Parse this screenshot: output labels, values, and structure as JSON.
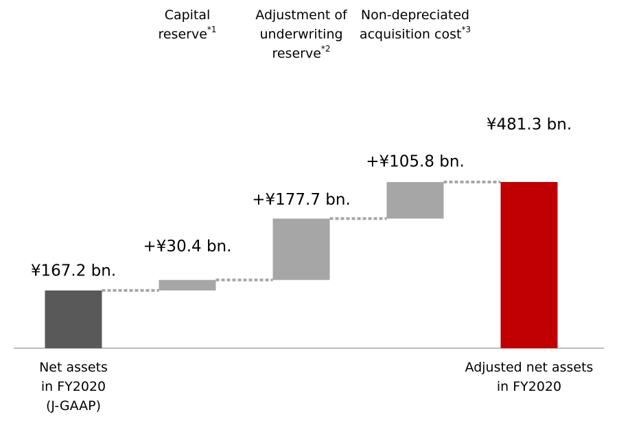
{
  "chart_data": {
    "type": "waterfall",
    "categories": [
      [
        "Net assets",
        "in FY2020",
        "(J-GAAP)"
      ],
      [
        "Capital",
        "reserve"
      ],
      [
        "Adjustment of",
        "underwriting",
        "reserve"
      ],
      [
        "Non-depreciated",
        "acquisition cost"
      ],
      [
        "Adjusted net assets",
        "in FY2020"
      ]
    ],
    "notes": [
      null,
      "*1",
      "*2",
      "*3",
      null
    ],
    "values": [
      167.2,
      30.4,
      177.7,
      105.8,
      481.3
    ],
    "value_labels": [
      "¥167.2 bn.",
      "+¥30.4 bn.",
      "+¥177.7 bn.",
      "+¥105.8 bn.",
      "¥481.3 bn."
    ],
    "colors": [
      "#595959",
      "#a6a6a6",
      "#a6a6a6",
      "#a6a6a6",
      "#c00000"
    ]
  }
}
